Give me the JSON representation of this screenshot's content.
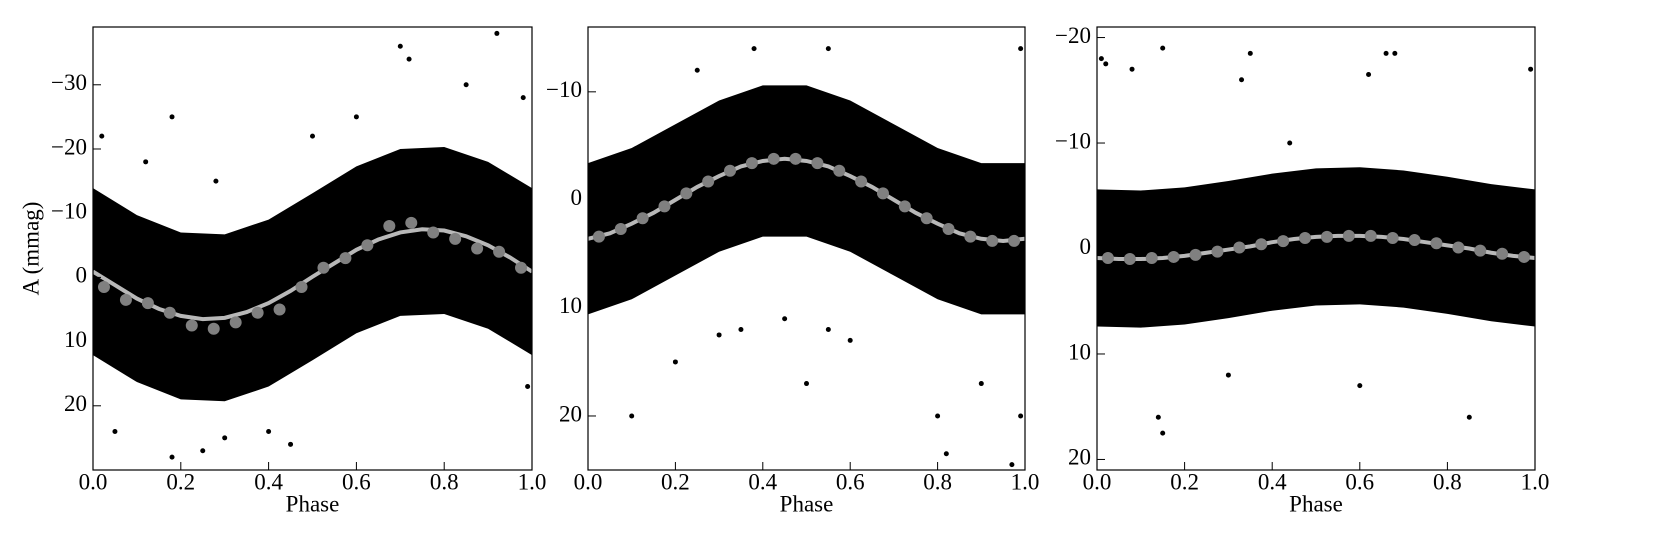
{
  "chart_data": [
    {
      "type": "scatter",
      "xlabel": "Phase",
      "ylabel": "A (mmag)",
      "xlim": [
        0,
        1
      ],
      "ylim": [
        30,
        -39
      ],
      "xticks": [
        {
          "value": 0,
          "label": "0.0"
        },
        0.2,
        0.4,
        0.6,
        0.8,
        {
          "value": 1,
          "label": "1.0"
        }
      ],
      "yticks": [
        {
          "value": -30,
          "label": "−30"
        },
        {
          "value": -20,
          "label": "−20"
        },
        {
          "value": -10,
          "label": "−10"
        },
        0,
        10,
        20
      ],
      "series": [
        {
          "style": "band",
          "color": "#000000",
          "x": [
            0,
            0.1,
            0.2,
            0.3,
            0.4,
            0.5,
            0.6,
            0.7,
            0.8,
            0.9,
            1
          ],
          "low": [
            -13.9,
            -9.7,
            -7.0,
            -6.7,
            -9.0,
            -13.1,
            -17.3,
            -20.0,
            -20.3,
            -18.0,
            -13.9
          ],
          "high": [
            12.1,
            16.3,
            19.0,
            19.3,
            17.0,
            12.9,
            8.7,
            6.0,
            5.7,
            8.0,
            12.1
          ]
        },
        {
          "style": "points",
          "color": "#000000",
          "x": [
            0.02,
            0.18,
            0.28,
            0.7,
            0.72,
            0.92,
            0.18,
            0.25,
            0.3,
            0.4,
            0.45,
            0.05,
            0.6,
            0.85,
            0.98,
            0.99,
            0.5,
            0.12
          ],
          "values": [
            -22,
            -25,
            -15,
            -36,
            -34,
            -38,
            28,
            27,
            25,
            24,
            26,
            24,
            -25,
            -30,
            -28,
            17,
            -22,
            -18
          ]
        },
        {
          "style": "line",
          "color": "#b8b8b8",
          "x": [
            0,
            0.05,
            0.1,
            0.15,
            0.2,
            0.25,
            0.3,
            0.35,
            0.4,
            0.45,
            0.5,
            0.55,
            0.6,
            0.65,
            0.7,
            0.75,
            0.8,
            0.85,
            0.9,
            0.95,
            1
          ],
          "values": [
            -0.9,
            1.2,
            3.3,
            4.9,
            6.0,
            6.5,
            6.3,
            5.4,
            4.0,
            2.1,
            -0.1,
            -2.2,
            -4.3,
            -5.9,
            -7.0,
            -7.5,
            -7.3,
            -6.4,
            -5.0,
            -3.1,
            -0.9
          ]
        },
        {
          "style": "points",
          "size": "large",
          "color": "#808080",
          "x": [
            0.025,
            0.075,
            0.125,
            0.175,
            0.225,
            0.275,
            0.325,
            0.375,
            0.425,
            0.475,
            0.525,
            0.575,
            0.625,
            0.675,
            0.725,
            0.775,
            0.825,
            0.875,
            0.925,
            0.975
          ],
          "values": [
            1.5,
            3.5,
            4.0,
            5.5,
            7.5,
            8.0,
            7.0,
            5.5,
            5.0,
            1.5,
            -1.5,
            -3.0,
            -5.0,
            -8.0,
            -8.5,
            -7.0,
            -6.0,
            -4.5,
            -4.0,
            -1.5
          ]
        }
      ]
    },
    {
      "type": "scatter",
      "xlabel": "Phase",
      "xlim": [
        0,
        1
      ],
      "ylim": [
        25,
        -16
      ],
      "xticks": [
        {
          "value": 0,
          "label": "0.0"
        },
        0.2,
        0.4,
        0.6,
        0.8,
        {
          "value": 1,
          "label": "1.0"
        }
      ],
      "yticks": [
        {
          "value": -10,
          "label": "−10"
        },
        0,
        10,
        20
      ],
      "series": [
        {
          "style": "band",
          "color": "#000000",
          "x": [
            0,
            0.1,
            0.2,
            0.3,
            0.4,
            0.5,
            0.6,
            0.7,
            0.8,
            0.9,
            1
          ],
          "low": [
            -3.4,
            -4.8,
            -7.0,
            -9.2,
            -10.6,
            -10.6,
            -9.2,
            -7.0,
            -4.8,
            -3.4,
            -3.4
          ],
          "high": [
            10.6,
            9.2,
            7.0,
            4.8,
            3.4,
            3.4,
            4.8,
            7.0,
            9.2,
            10.6,
            10.6
          ]
        },
        {
          "style": "points",
          "color": "#000000",
          "x": [
            0.1,
            0.2,
            0.3,
            0.35,
            0.45,
            0.5,
            0.55,
            0.6,
            0.8,
            0.82,
            0.97,
            0.99,
            0.38,
            0.55,
            0.99,
            0.9,
            0.25
          ],
          "values": [
            20,
            15,
            12.5,
            12,
            11,
            17,
            12,
            13,
            20,
            23.5,
            24.5,
            20,
            -14,
            -14,
            -14,
            17,
            -12
          ]
        },
        {
          "style": "line",
          "color": "#b8b8b8",
          "x": [
            0,
            0.05,
            0.1,
            0.15,
            0.2,
            0.25,
            0.3,
            0.35,
            0.4,
            0.45,
            0.5,
            0.55,
            0.6,
            0.65,
            0.7,
            0.75,
            0.8,
            0.85,
            0.9,
            0.95,
            1
          ],
          "values": [
            3.6,
            3.1,
            2.2,
            1.2,
            0,
            -1.2,
            -2.2,
            -3.1,
            -3.6,
            -3.8,
            -3.6,
            -3.1,
            -2.2,
            -1.2,
            0,
            1.2,
            2.2,
            3.1,
            3.6,
            3.8,
            3.6
          ]
        },
        {
          "style": "points",
          "size": "large",
          "color": "#808080",
          "x": [
            0.025,
            0.075,
            0.125,
            0.175,
            0.225,
            0.275,
            0.325,
            0.375,
            0.425,
            0.475,
            0.525,
            0.575,
            0.625,
            0.675,
            0.725,
            0.775,
            0.825,
            0.875,
            0.925,
            0.975
          ],
          "values": [
            3.4,
            2.7,
            1.7,
            0.6,
            -0.6,
            -1.7,
            -2.7,
            -3.4,
            -3.8,
            -3.8,
            -3.4,
            -2.7,
            -1.7,
            -0.6,
            0.6,
            1.7,
            2.7,
            3.4,
            3.8,
            3.8
          ]
        }
      ]
    },
    {
      "type": "scatter",
      "xlabel": "Phase",
      "xlim": [
        0,
        1
      ],
      "ylim": [
        21,
        -21
      ],
      "xticks": [
        {
          "value": 0,
          "label": "0.0"
        },
        0.2,
        0.4,
        0.6,
        0.8,
        {
          "value": 1,
          "label": "1.0"
        }
      ],
      "yticks": [
        {
          "value": -20,
          "label": "−20"
        },
        {
          "value": -10,
          "label": "−10"
        },
        0,
        10,
        20
      ],
      "series": [
        {
          "style": "band",
          "color": "#000000",
          "x": [
            0,
            0.1,
            0.2,
            0.3,
            0.4,
            0.5,
            0.6,
            0.7,
            0.8,
            0.9,
            1
          ],
          "low": [
            -5.6,
            -5.5,
            -5.8,
            -6.4,
            -7.1,
            -7.6,
            -7.7,
            -7.4,
            -6.8,
            -6.1,
            -5.6
          ],
          "high": [
            7.4,
            7.5,
            7.2,
            6.6,
            5.9,
            5.4,
            5.3,
            5.6,
            6.2,
            6.9,
            7.4
          ]
        },
        {
          "style": "points",
          "color": "#000000",
          "x": [
            0.01,
            0.02,
            0.08,
            0.15,
            0.35,
            0.33,
            0.62,
            0.66,
            0.68,
            0.99,
            0.15,
            0.14,
            0.44,
            0.85,
            0.3,
            0.6
          ],
          "values": [
            -18,
            -17.5,
            -17,
            -19,
            -18.5,
            -16,
            -16.5,
            -18.5,
            -18.5,
            -17,
            17.5,
            16,
            -10,
            16,
            12,
            13
          ]
        },
        {
          "style": "line",
          "color": "#b8b8b8",
          "x": [
            0,
            0.05,
            0.1,
            0.15,
            0.2,
            0.25,
            0.3,
            0.35,
            0.4,
            0.45,
            0.5,
            0.55,
            0.6,
            0.65,
            0.7,
            0.75,
            0.8,
            0.85,
            0.9,
            0.95,
            1
          ],
          "values": [
            0.9,
            1.0,
            1.0,
            0.9,
            0.7,
            0.4,
            0.1,
            -0.2,
            -0.6,
            -0.9,
            -1.1,
            -1.2,
            -1.2,
            -1.1,
            -0.9,
            -0.6,
            -0.3,
            0.0,
            0.4,
            0.7,
            0.9
          ]
        },
        {
          "style": "points",
          "size": "large",
          "color": "#808080",
          "x": [
            0.025,
            0.075,
            0.125,
            0.175,
            0.225,
            0.275,
            0.325,
            0.375,
            0.425,
            0.475,
            0.525,
            0.575,
            0.625,
            0.675,
            0.725,
            0.775,
            0.825,
            0.875,
            0.925,
            0.975
          ],
          "values": [
            0.9,
            1.0,
            0.9,
            0.8,
            0.6,
            0.3,
            -0.1,
            -0.4,
            -0.7,
            -1.0,
            -1.1,
            -1.2,
            -1.2,
            -1.0,
            -0.8,
            -0.5,
            -0.1,
            0.2,
            0.5,
            0.8
          ]
        }
      ]
    }
  ]
}
